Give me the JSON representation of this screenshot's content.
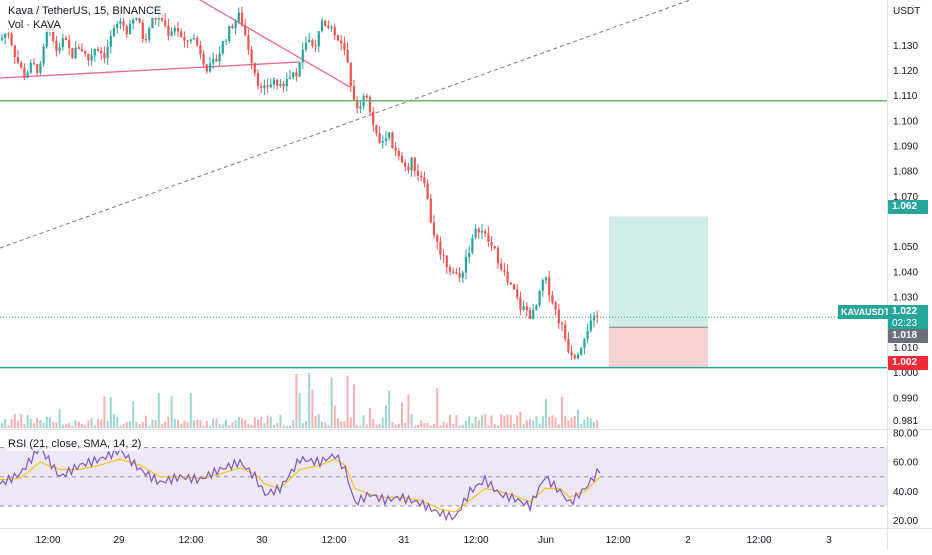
{
  "header": {
    "symbol_title": "Kava / TetherUS, 15, BINANCE",
    "volume_label": "Vol · KAVA"
  },
  "rsi": {
    "label": "RSI (21, close, SMA, 14, 2)"
  },
  "price_axis": {
    "currency": "USDT",
    "ticks": [
      "1.130",
      "1.120",
      "1.110",
      "1.100",
      "1.090",
      "1.080",
      "1.070",
      "1.050",
      "1.040",
      "1.030",
      "1.010",
      "1.000",
      "0.990",
      "0.981"
    ],
    "tick_values": [
      1.13,
      1.12,
      1.11,
      1.1,
      1.09,
      1.08,
      1.07,
      1.05,
      1.04,
      1.03,
      1.01,
      1.0,
      0.99,
      0.981
    ]
  },
  "rsi_axis": {
    "ticks": [
      "80.00",
      "60.00",
      "40.00",
      "20.00"
    ],
    "tick_values": [
      80,
      60,
      40,
      20
    ]
  },
  "time_axis": {
    "labels": [
      "12:00",
      "29",
      "12:00",
      "30",
      "12:00",
      "31",
      "12:00",
      "Jun",
      "12:00",
      "2",
      "12:00",
      "3"
    ]
  },
  "tags": {
    "target": "1.062",
    "symbol": "KAVAUSDT",
    "current": "1.022",
    "countdown": "02:23",
    "entry": "1.018",
    "stop": "1.002"
  },
  "colors": {
    "up": "#26a69a",
    "down": "#ef5350",
    "rsi_line": "#7e57c2",
    "rsi_ma": "#f5c518",
    "rsi_band": "#ede7f6",
    "hline": "#66bb6a",
    "profit": "#d1ede7",
    "loss": "#f9d3d4",
    "text": "#131722"
  },
  "chart_data": {
    "type": "candlestick",
    "price_axis_range": [
      0.978,
      1.148
    ],
    "rsi_axis_range": [
      15,
      82
    ],
    "rsi_levels": [
      70,
      50,
      30
    ],
    "horizontal_lines": [
      1.108,
      1.002
    ],
    "long_position": {
      "entry": 1.018,
      "target": 1.062,
      "stop": 1.002
    },
    "last_price": 1.022,
    "price_path": [
      [
        0,
        1.132
      ],
      [
        8,
        1.136
      ],
      [
        16,
        1.125
      ],
      [
        24,
        1.118
      ],
      [
        32,
        1.122
      ],
      [
        40,
        1.12
      ],
      [
        48,
        1.138
      ],
      [
        56,
        1.128
      ],
      [
        64,
        1.132
      ],
      [
        72,
        1.126
      ],
      [
        80,
        1.13
      ],
      [
        88,
        1.124
      ],
      [
        96,
        1.13
      ],
      [
        104,
        1.126
      ],
      [
        112,
        1.134
      ],
      [
        120,
        1.14
      ],
      [
        128,
        1.135
      ],
      [
        136,
        1.142
      ],
      [
        144,
        1.132
      ],
      [
        152,
        1.14
      ],
      [
        160,
        1.142
      ],
      [
        168,
        1.135
      ],
      [
        176,
        1.138
      ],
      [
        184,
        1.13
      ],
      [
        192,
        1.134
      ],
      [
        200,
        1.128
      ],
      [
        208,
        1.12
      ],
      [
        216,
        1.124
      ],
      [
        224,
        1.132
      ],
      [
        232,
        1.138
      ],
      [
        240,
        1.142
      ],
      [
        248,
        1.13
      ],
      [
        256,
        1.118
      ],
      [
        262,
        1.111
      ],
      [
        268,
        1.114
      ],
      [
        274,
        1.116
      ],
      [
        282,
        1.112
      ],
      [
        290,
        1.118
      ],
      [
        298,
        1.12
      ],
      [
        306,
        1.132
      ],
      [
        314,
        1.128
      ],
      [
        322,
        1.14
      ],
      [
        330,
        1.138
      ],
      [
        338,
        1.132
      ],
      [
        346,
        1.126
      ],
      [
        352,
        1.112
      ],
      [
        358,
        1.104
      ],
      [
        364,
        1.112
      ],
      [
        370,
        1.104
      ],
      [
        376,
        1.094
      ],
      [
        382,
        1.09
      ],
      [
        388,
        1.096
      ],
      [
        394,
        1.088
      ],
      [
        400,
        1.084
      ],
      [
        406,
        1.08
      ],
      [
        412,
        1.084
      ],
      [
        418,
        1.079
      ],
      [
        424,
        1.078
      ],
      [
        430,
        1.062
      ],
      [
        436,
        1.052
      ],
      [
        442,
        1.047
      ],
      [
        448,
        1.042
      ],
      [
        454,
        1.04
      ],
      [
        460,
        1.037
      ],
      [
        466,
        1.046
      ],
      [
        472,
        1.052
      ],
      [
        478,
        1.058
      ],
      [
        484,
        1.055
      ],
      [
        490,
        1.051
      ],
      [
        496,
        1.047
      ],
      [
        502,
        1.042
      ],
      [
        508,
        1.035
      ],
      [
        514,
        1.032
      ],
      [
        520,
        1.026
      ],
      [
        526,
        1.025
      ],
      [
        532,
        1.022
      ],
      [
        538,
        1.028
      ],
      [
        544,
        1.038
      ],
      [
        550,
        1.032
      ],
      [
        556,
        1.024
      ],
      [
        562,
        1.018
      ],
      [
        568,
        1.01
      ],
      [
        574,
        1.007
      ],
      [
        580,
        1.01
      ],
      [
        586,
        1.017
      ],
      [
        592,
        1.02
      ],
      [
        598,
        1.022
      ]
    ],
    "rsi_path": [
      [
        0,
        45
      ],
      [
        20,
        52
      ],
      [
        40,
        70
      ],
      [
        60,
        50
      ],
      [
        80,
        58
      ],
      [
        100,
        62
      ],
      [
        120,
        68
      ],
      [
        140,
        55
      ],
      [
        160,
        46
      ],
      [
        180,
        50
      ],
      [
        200,
        48
      ],
      [
        220,
        55
      ],
      [
        240,
        60
      ],
      [
        255,
        50
      ],
      [
        265,
        38
      ],
      [
        280,
        42
      ],
      [
        300,
        62
      ],
      [
        320,
        60
      ],
      [
        335,
        65
      ],
      [
        345,
        55
      ],
      [
        355,
        32
      ],
      [
        370,
        38
      ],
      [
        385,
        34
      ],
      [
        400,
        36
      ],
      [
        420,
        32
      ],
      [
        440,
        25
      ],
      [
        455,
        22
      ],
      [
        470,
        40
      ],
      [
        485,
        48
      ],
      [
        500,
        38
      ],
      [
        515,
        35
      ],
      [
        530,
        30
      ],
      [
        545,
        50
      ],
      [
        560,
        40
      ],
      [
        570,
        32
      ],
      [
        585,
        42
      ],
      [
        600,
        55
      ]
    ],
    "rsi_ma_path": [
      [
        0,
        48
      ],
      [
        20,
        49
      ],
      [
        40,
        60
      ],
      [
        60,
        55
      ],
      [
        80,
        55
      ],
      [
        100,
        58
      ],
      [
        120,
        62
      ],
      [
        140,
        58
      ],
      [
        160,
        50
      ],
      [
        180,
        50
      ],
      [
        200,
        49
      ],
      [
        220,
        52
      ],
      [
        240,
        56
      ],
      [
        255,
        52
      ],
      [
        265,
        45
      ],
      [
        280,
        42
      ],
      [
        300,
        55
      ],
      [
        320,
        58
      ],
      [
        335,
        62
      ],
      [
        345,
        58
      ],
      [
        355,
        42
      ],
      [
        370,
        38
      ],
      [
        385,
        36
      ],
      [
        400,
        36
      ],
      [
        420,
        34
      ],
      [
        440,
        28
      ],
      [
        455,
        26
      ],
      [
        470,
        34
      ],
      [
        485,
        42
      ],
      [
        500,
        40
      ],
      [
        515,
        37
      ],
      [
        530,
        33
      ],
      [
        545,
        42
      ],
      [
        560,
        42
      ],
      [
        570,
        36
      ],
      [
        585,
        40
      ],
      [
        600,
        50
      ]
    ]
  }
}
